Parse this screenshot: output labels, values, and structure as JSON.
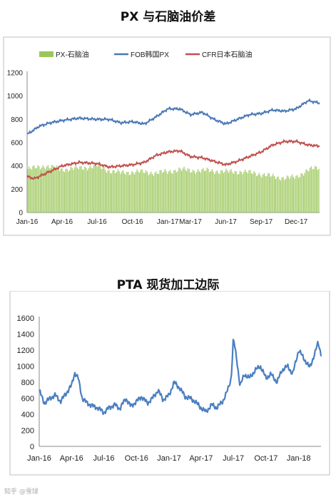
{
  "chart_data": [
    {
      "type": "bar+line",
      "title": "PX 与石脑油价差",
      "ylim": [
        0,
        1200
      ],
      "yticks": [
        "0",
        "200",
        "400",
        "600",
        "800",
        "1000",
        "1200"
      ],
      "xticks": [
        "Jan-16",
        "Apr-16",
        "Jul-16",
        "Oct-16",
        "Jan-17",
        "Mar-17",
        "Jun-17",
        "Sep-17",
        "Dec-17"
      ],
      "x_range": [
        "2016-01-01",
        "2018-01-31"
      ],
      "legend_position": "top",
      "series": [
        {
          "name": "PX-石脑油",
          "kind": "bar",
          "color": "#9bc75a",
          "x": [
            "2016-01-01",
            "2016-02-15",
            "2016-04-01",
            "2016-05-15",
            "2016-07-01",
            "2016-08-01",
            "2016-09-01",
            "2016-10-15",
            "2016-12-01",
            "2017-01-01",
            "2017-02-01",
            "2017-03-01",
            "2017-04-15",
            "2017-06-01",
            "2017-07-15",
            "2017-09-01",
            "2017-10-15",
            "2017-12-01",
            "2018-01-01",
            "2018-01-31"
          ],
          "values": [
            370,
            400,
            370,
            380,
            400,
            360,
            340,
            350,
            340,
            350,
            370,
            360,
            360,
            350,
            350,
            330,
            300,
            300,
            370,
            380
          ]
        },
        {
          "name": "FOB韩国PX",
          "kind": "line",
          "color": "#4a78b5",
          "x": [
            "2016-01-01",
            "2016-02-01",
            "2016-03-01",
            "2016-04-01",
            "2016-05-15",
            "2016-07-01",
            "2016-08-01",
            "2016-09-01",
            "2016-10-01",
            "2016-11-01",
            "2016-12-01",
            "2017-01-01",
            "2017-02-01",
            "2017-03-01",
            "2017-04-01",
            "2017-05-01",
            "2017-06-01",
            "2017-07-01",
            "2017-08-01",
            "2017-09-01",
            "2017-10-01",
            "2017-11-01",
            "2017-12-01",
            "2018-01-01",
            "2018-01-31"
          ],
          "values": [
            670,
            740,
            770,
            790,
            810,
            800,
            800,
            770,
            780,
            760,
            820,
            890,
            890,
            840,
            860,
            800,
            760,
            800,
            840,
            850,
            880,
            870,
            890,
            960,
            940
          ]
        },
        {
          "name": "CFR日本石脑油",
          "kind": "line",
          "color": "#c0504d",
          "x": [
            "2016-01-01",
            "2016-01-20",
            "2016-02-15",
            "2016-04-01",
            "2016-05-15",
            "2016-07-01",
            "2016-08-01",
            "2016-09-01",
            "2016-10-01",
            "2016-11-01",
            "2016-12-01",
            "2017-01-01",
            "2017-02-01",
            "2017-03-01",
            "2017-04-01",
            "2017-05-01",
            "2017-06-01",
            "2017-07-01",
            "2017-08-01",
            "2017-09-01",
            "2017-10-01",
            "2017-11-01",
            "2017-12-01",
            "2018-01-01",
            "2018-01-31"
          ],
          "values": [
            310,
            290,
            330,
            400,
            430,
            420,
            390,
            400,
            410,
            430,
            490,
            520,
            530,
            480,
            470,
            440,
            410,
            440,
            480,
            520,
            580,
            610,
            610,
            580,
            570
          ]
        }
      ]
    },
    {
      "type": "line",
      "title": "PTA 现货加工边际",
      "ylim": [
        0,
        1600
      ],
      "yticks": [
        "0",
        "200",
        "400",
        "600",
        "800",
        "1000",
        "1200",
        "1400",
        "1600"
      ],
      "xticks": [
        "Jan-16",
        "Apr-16",
        "Jul-16",
        "Oct-16",
        "Jan-17",
        "Apr-17",
        "Jul-17",
        "Oct-17",
        "Jan-18"
      ],
      "x_range": [
        "2016-01-01",
        "2018-03-05"
      ],
      "series": [
        {
          "color": "#4a7fc1",
          "x": [
            "2016-01-01",
            "2016-01-15",
            "2016-02-01",
            "2016-02-15",
            "2016-03-01",
            "2016-03-15",
            "2016-04-01",
            "2016-04-10",
            "2016-04-20",
            "2016-05-01",
            "2016-05-15",
            "2016-06-01",
            "2016-06-15",
            "2016-07-01",
            "2016-07-15",
            "2016-08-01",
            "2016-08-15",
            "2016-09-01",
            "2016-09-15",
            "2016-10-01",
            "2016-10-15",
            "2016-11-01",
            "2016-11-15",
            "2016-12-01",
            "2016-12-15",
            "2017-01-01",
            "2017-01-15",
            "2017-02-01",
            "2017-02-15",
            "2017-03-01",
            "2017-03-15",
            "2017-04-01",
            "2017-04-15",
            "2017-05-01",
            "2017-05-15",
            "2017-06-01",
            "2017-06-15",
            "2017-06-25",
            "2017-07-01",
            "2017-07-10",
            "2017-07-20",
            "2017-08-01",
            "2017-08-15",
            "2017-09-01",
            "2017-09-15",
            "2017-10-01",
            "2017-10-15",
            "2017-11-01",
            "2017-11-15",
            "2017-12-01",
            "2017-12-15",
            "2018-01-01",
            "2018-01-15",
            "2018-02-01",
            "2018-02-15",
            "2018-02-25",
            "2018-03-05"
          ],
          "values": [
            700,
            540,
            600,
            640,
            560,
            650,
            760,
            920,
            850,
            600,
            540,
            500,
            480,
            420,
            480,
            520,
            470,
            600,
            500,
            560,
            620,
            540,
            600,
            700,
            580,
            640,
            800,
            720,
            620,
            600,
            560,
            480,
            430,
            520,
            480,
            560,
            700,
            850,
            1350,
            1100,
            750,
            900,
            850,
            950,
            1000,
            850,
            900,
            800,
            950,
            1000,
            900,
            1200,
            1100,
            980,
            1150,
            1300,
            1150
          ]
        }
      ]
    }
  ],
  "watermark": "知乎 @雪球"
}
